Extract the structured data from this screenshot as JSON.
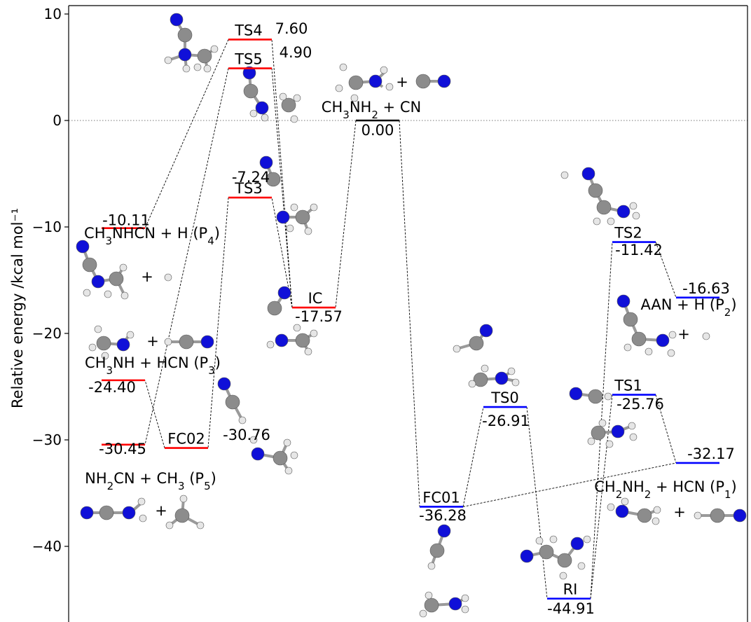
{
  "colors": {
    "red": "#ff0000",
    "blue": "#0000ff",
    "black": "#000000",
    "N": "#1010d8",
    "C": "#8c8c8c",
    "H": "#e6e6e6"
  },
  "chart_data": {
    "type": "energy-profile",
    "ylabel": "Relative energy /kcal mol⁻¹",
    "ylim": [
      -46,
      10
    ],
    "yticks": [
      10,
      0,
      -10,
      -20,
      -30,
      -40
    ],
    "zero_line": true,
    "levels": [
      {
        "id": "P4",
        "label": "",
        "value": -10.11,
        "value_text": "-10.11",
        "color": "#ff0000",
        "x": [
          145,
          207
        ],
        "name_text": "CH3NHCN + H (P4)"
      },
      {
        "id": "P3",
        "label": "",
        "value": -24.4,
        "value_text": "-24.40",
        "color": "#ff0000",
        "x": [
          145,
          207
        ],
        "name_text": "CH3NH + HCN (P3)"
      },
      {
        "id": "P5",
        "label": "",
        "value": -30.45,
        "value_text": "-30.45",
        "color": "#ff0000",
        "x": [
          145,
          207
        ],
        "name_text": "NH2CN + CH3 (P5)"
      },
      {
        "id": "FC02",
        "label": "FC02",
        "value": -30.76,
        "value_text": "-30.76",
        "color": "#ff0000",
        "x": [
          235,
          297
        ]
      },
      {
        "id": "TS4",
        "label": "TS4",
        "value": 7.6,
        "value_text": "7.60",
        "color": "#ff0000",
        "x": [
          326,
          388
        ]
      },
      {
        "id": "TS5",
        "label": "TS5",
        "value": 4.9,
        "value_text": "4.90",
        "color": "#ff0000",
        "x": [
          326,
          388
        ]
      },
      {
        "id": "TS3",
        "label": "TS3",
        "value": -7.24,
        "value_text": "-7.24",
        "color": "#ff0000",
        "x": [
          326,
          388
        ]
      },
      {
        "id": "IC",
        "label": "IC",
        "value": -17.57,
        "value_text": "-17.57",
        "color": "#ff0000",
        "x": [
          417,
          479
        ]
      },
      {
        "id": "R",
        "label": "",
        "value": 0.0,
        "value_text": "0.00",
        "color": "#000000",
        "x": [
          508,
          570
        ],
        "name_text": "CH3NH2 + CN"
      },
      {
        "id": "FC01",
        "label": "FC01",
        "value": -36.28,
        "value_text": "-36.28",
        "color": "#0000ff",
        "x": [
          599,
          661
        ]
      },
      {
        "id": "TS0",
        "label": "TS0",
        "value": -26.91,
        "value_text": "-26.91",
        "color": "#0000ff",
        "x": [
          690,
          752
        ]
      },
      {
        "id": "RI",
        "label": "RI",
        "value": -44.91,
        "value_text": "-44.91",
        "color": "#0000ff",
        "x": [
          781,
          843
        ]
      },
      {
        "id": "TS2",
        "label": "TS2",
        "value": -11.42,
        "value_text": "-11.42",
        "color": "#0000ff",
        "x": [
          874,
          936
        ]
      },
      {
        "id": "TS1",
        "label": "TS1",
        "value": -25.76,
        "value_text": "-25.76",
        "color": "#0000ff",
        "x": [
          874,
          936
        ]
      },
      {
        "id": "P2",
        "label": "",
        "value": -16.63,
        "value_text": "-16.63",
        "color": "#0000ff",
        "x": [
          965,
          1027
        ],
        "name_text": "AAN + H (P2)"
      },
      {
        "id": "P1",
        "label": "",
        "value": -32.17,
        "value_text": "-32.17",
        "color": "#0000ff",
        "x": [
          965,
          1027
        ],
        "name_text": "CH2NH2 + HCN (P1)"
      }
    ],
    "connections": [
      [
        "R",
        "IC"
      ],
      [
        "IC",
        "TS4"
      ],
      [
        "IC",
        "TS5"
      ],
      [
        "IC",
        "TS3"
      ],
      [
        "TS4",
        "P4"
      ],
      [
        "TS5",
        "P5"
      ],
      [
        "TS3",
        "FC02"
      ],
      [
        "FC02",
        "P3"
      ],
      [
        "R",
        "FC01"
      ],
      [
        "FC01",
        "TS0"
      ],
      [
        "TS0",
        "RI"
      ],
      [
        "RI",
        "TS2"
      ],
      [
        "RI",
        "TS1"
      ],
      [
        "TS2",
        "P2"
      ],
      [
        "TS1",
        "P1"
      ],
      [
        "FC01",
        "P1"
      ]
    ]
  }
}
